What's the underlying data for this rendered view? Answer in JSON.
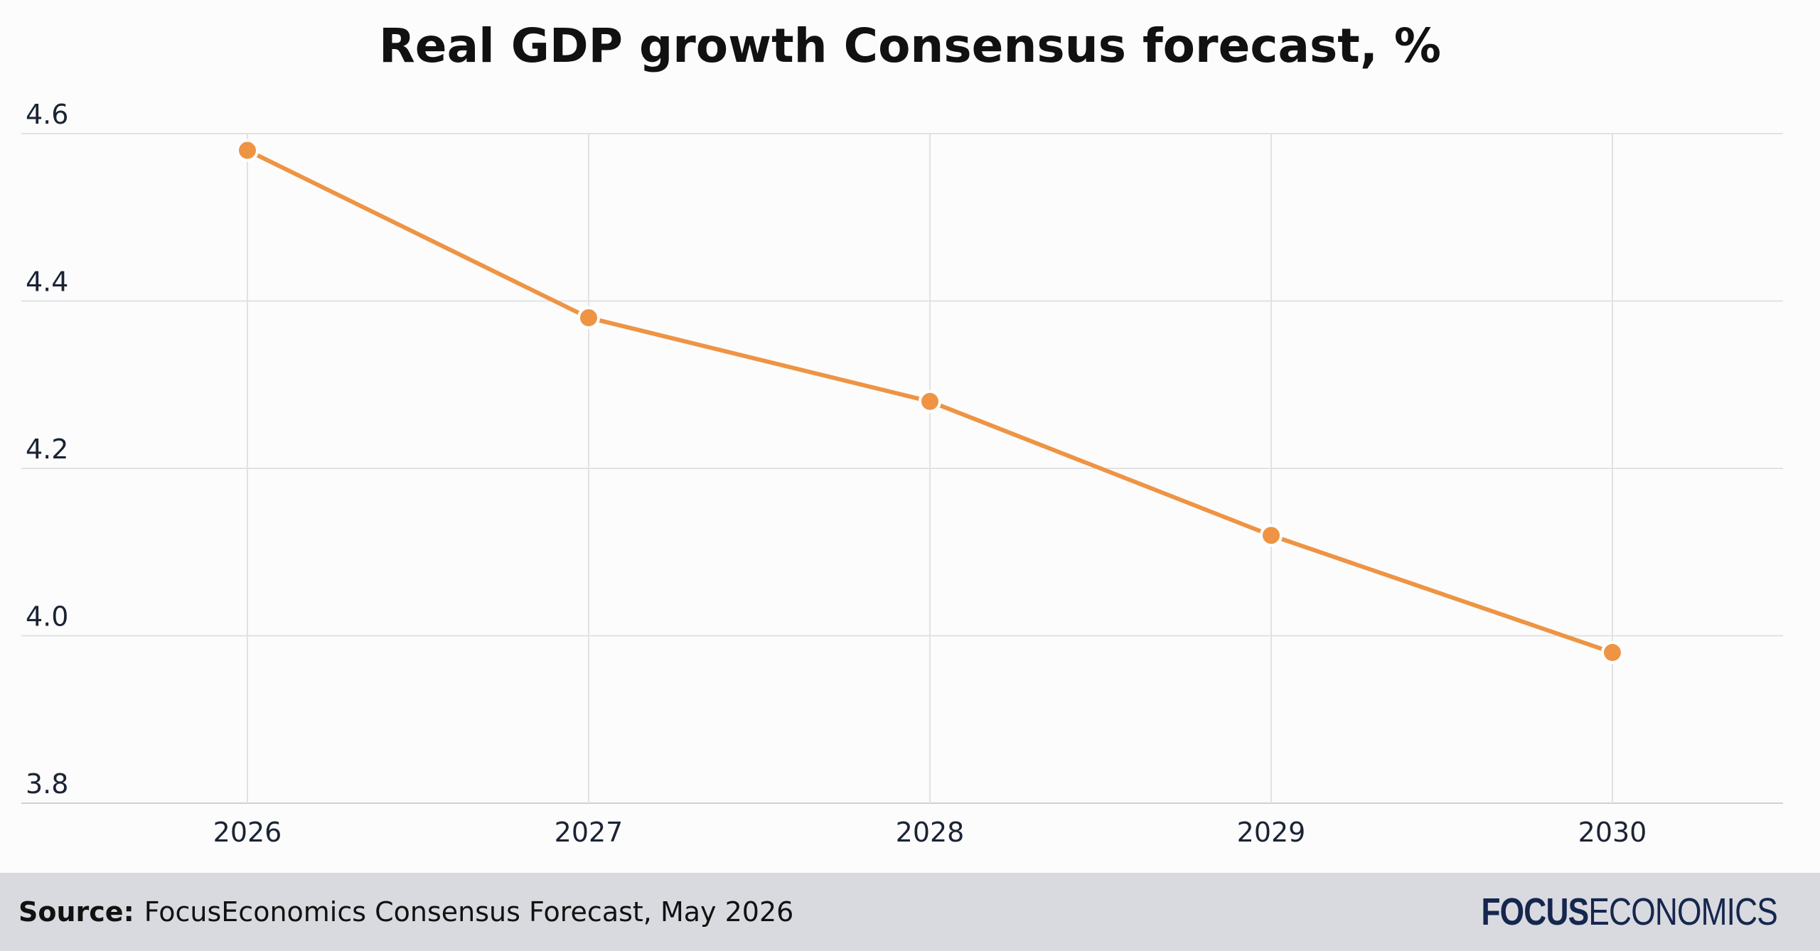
{
  "chart_data": {
    "type": "line",
    "title": "Real GDP growth Consensus forecast, %",
    "xlabel": "",
    "ylabel": "",
    "categories": [
      "2026",
      "2027",
      "2028",
      "2029",
      "2030"
    ],
    "series": [
      {
        "values": [
          4.58,
          4.38,
          4.28,
          4.12,
          3.98
        ],
        "color": "#ee9444"
      }
    ],
    "ylim": [
      3.8,
      4.6
    ],
    "yticks": [
      "4.6",
      "4.4",
      "4.2",
      "4.0",
      "3.8"
    ],
    "grid": true,
    "legend": "none"
  },
  "footer": {
    "source_label": "Source:",
    "source_text": "FocusEconomics Consensus Forecast, May 2026",
    "brand_bold": "FOCUS",
    "brand_light": "ECONOMICS"
  }
}
